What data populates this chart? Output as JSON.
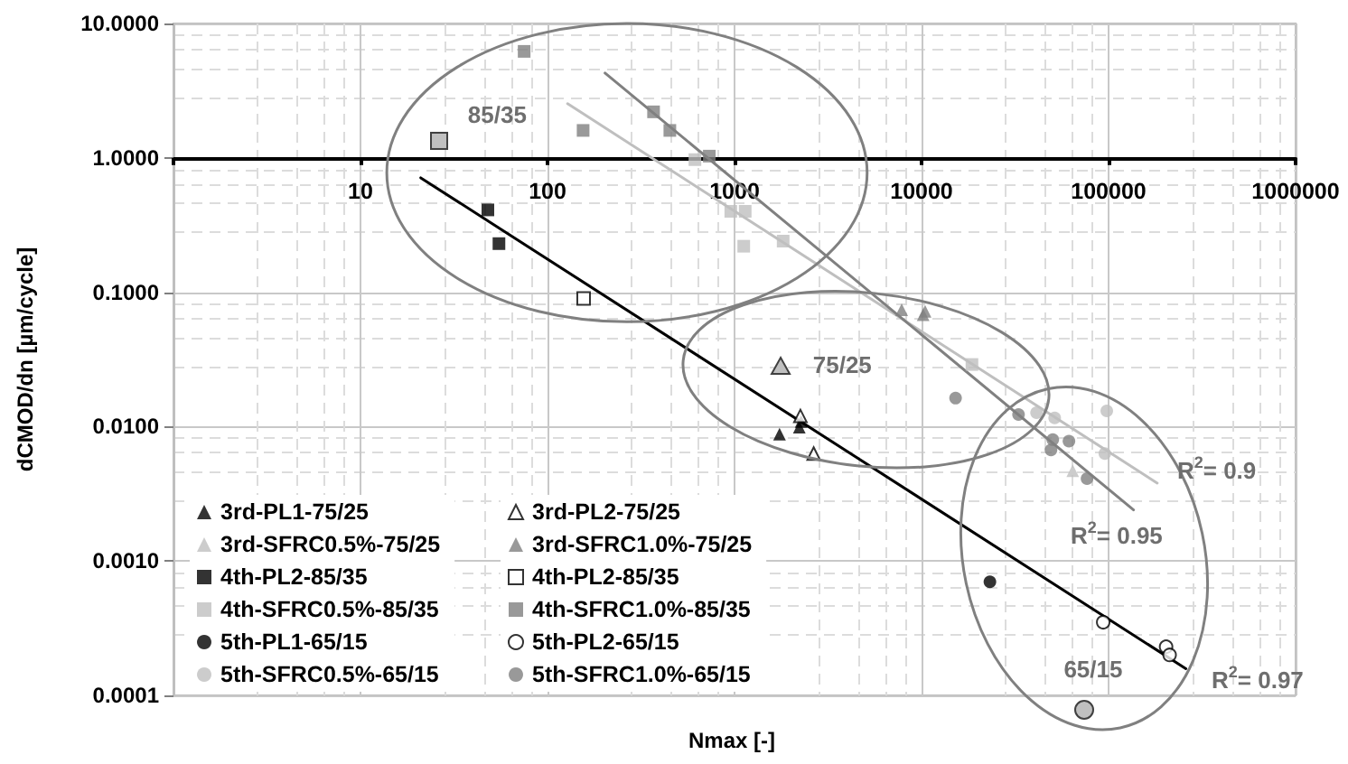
{
  "chart_data": {
    "type": "scatter",
    "xlabel": "Nmax [-]",
    "ylabel": "dCMOD/dn [µm/cycle]",
    "log": "xy",
    "grid": true,
    "legend": "bottom left",
    "xlim": [
      1,
      1000000
    ],
    "xticks": [
      {
        "value": 1,
        "label": null
      },
      10,
      100,
      1000,
      10000,
      100000,
      1000000
    ],
    "ylim": [
      0.0001,
      10
    ],
    "yticks": [
      {
        "value": 0.0001,
        "label": "0.0001"
      },
      {
        "value": 0.001,
        "label": "0.0010"
      },
      {
        "value": 0.01,
        "label": "0.0100"
      },
      {
        "value": 0.1,
        "label": "0.1000"
      },
      {
        "value": 1,
        "label": "1.0000"
      },
      {
        "value": 10,
        "label": "10.0000"
      }
    ],
    "series": [
      {
        "name": "3rd-PL1-75/25",
        "color": "#000000",
        "marker": "triangle",
        "x": [
          1740,
          2220,
          2270
        ],
        "values": [
          0.0088,
          0.0099,
          0.0109
        ]
      },
      {
        "name": "3rd-PL2-75/25",
        "color": "#ffffff",
        "marker": "triangle",
        "x": [
          2250,
          2650
        ],
        "values": [
          0.012,
          0.0063
        ]
      },
      {
        "name": "3rd-SFRC0.5%-75/25",
        "color": "#bfbfbf",
        "marker": "triangle",
        "x": [
          64300
        ],
        "values": [
          0.0047
        ]
      },
      {
        "name": "3rd-SFRC1.0%-75/25",
        "color": "#808080",
        "marker": "triangle",
        "x": [
          7830,
          10200,
          10450
        ],
        "values": [
          0.074,
          0.068,
          0.072
        ]
      },
      {
        "name": "4th-PL2-85/35",
        "color": "#000000",
        "marker": "square",
        "x": [
          48,
          55
        ],
        "values": [
          0.41,
          0.23
        ]
      },
      {
        "name": "4th-PL2-85/35",
        "color": "#ffffff",
        "marker": "square",
        "x": [
          156
        ],
        "values": [
          0.09
        ]
      },
      {
        "name": "4th-SFRC0.5%-85/35",
        "color": "#bfbfbf",
        "marker": "square",
        "x": [
          614,
          955,
          1140,
          1120,
          1820,
          18600
        ],
        "values": [
          0.97,
          0.4,
          0.4,
          0.22,
          0.24,
          0.029
        ]
      },
      {
        "name": "4th-SFRC1.0%-85/35",
        "color": "#808080",
        "marker": "square",
        "x": [
          75,
          155,
          369,
          451,
          733
        ],
        "values": [
          6.2,
          1.6,
          2.2,
          1.6,
          1.03
        ]
      },
      {
        "name": "5th-PL1-65/15",
        "color": "#000000",
        "marker": "circle",
        "x": [
          23200
        ],
        "values": [
          0.0007
        ]
      },
      {
        "name": "5th-PL2-65/15",
        "color": "#ffffff",
        "marker": "circle",
        "x": [
          93600,
          203000,
          212000
        ],
        "values": [
          0.00035,
          0.00023,
          0.0002
        ]
      },
      {
        "name": "5th-SFRC0.5%-65/15",
        "color": "#bfbfbf",
        "marker": "circle",
        "x": [
          41200,
          51500,
          97800,
          95500
        ],
        "values": [
          0.0127,
          0.0116,
          0.0131,
          0.0063
        ]
      },
      {
        "name": "5th-SFRC1.0%-65/15",
        "color": "#808080",
        "marker": "circle",
        "x": [
          15200,
          33000,
          50300,
          61400,
          49200,
          76700
        ],
        "values": [
          0.0163,
          0.0123,
          0.008,
          0.0078,
          0.0067,
          0.0041
        ]
      },
      {
        "type": "line",
        "color": "#bfbfbf",
        "marker": "none",
        "line_style": "solid",
        "x": [
          128,
          182000
        ],
        "values": [
          2.53,
          0.0038
        ]
      },
      {
        "type": "line",
        "color": "#808080",
        "marker": "none",
        "line_style": "solid",
        "x": [
          203,
          136000
        ],
        "values": [
          4.28,
          0.0024
        ]
      },
      {
        "type": "line",
        "color": "#000000",
        "marker": "none",
        "line_style": "solid",
        "x": [
          21,
          259000
        ],
        "values": [
          0.71,
          0.000158
        ]
      }
    ],
    "annotations": [
      "85/35",
      "75/25",
      "65/15",
      "R$^{2}$= 0.9",
      "R$^{2}$= 0.95",
      "R$^{2}$= 0.97"
    ]
  }
}
